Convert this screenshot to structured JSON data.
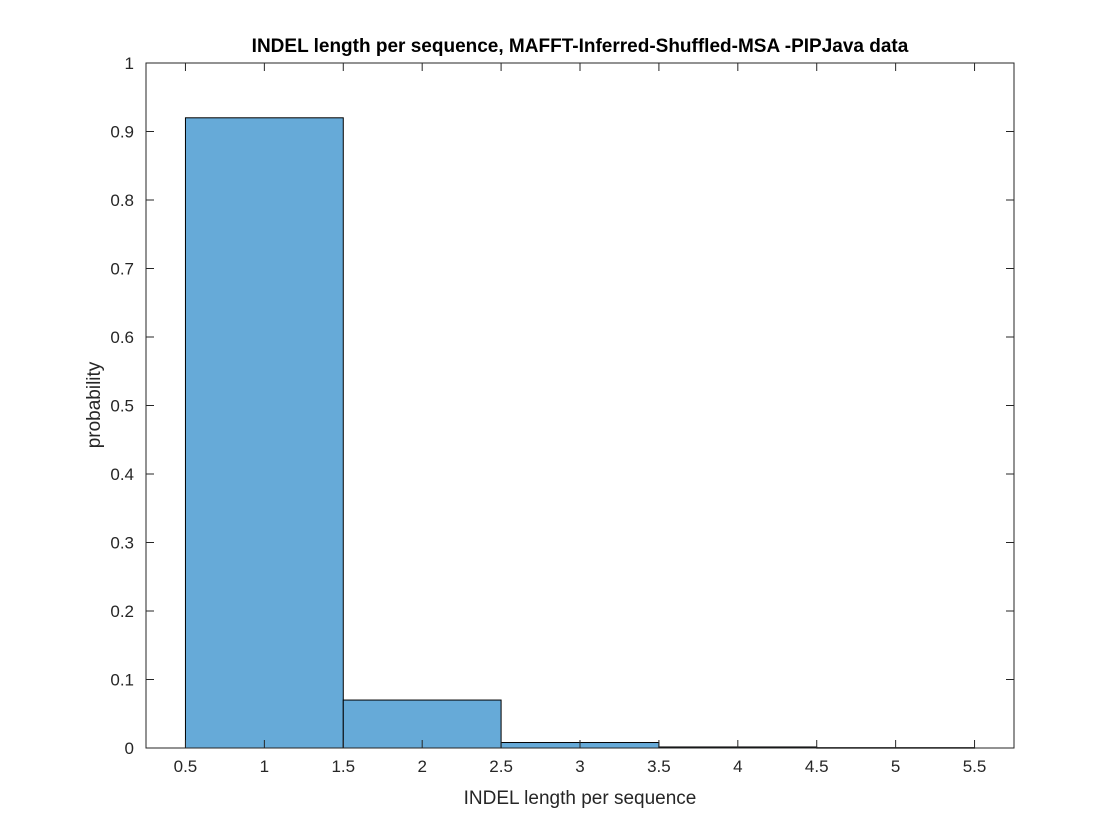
{
  "chart_data": {
    "type": "bar",
    "title": "INDEL length per sequence, MAFFT-Inferred-Shuffled-MSA -PIPJava data",
    "xlabel": "INDEL length per sequence",
    "ylabel": "probability",
    "xlim": [
      0.25,
      5.75
    ],
    "ylim": [
      0,
      1
    ],
    "xticks": [
      "0.5",
      "1",
      "1.5",
      "2",
      "2.5",
      "3",
      "3.5",
      "4",
      "4.5",
      "5",
      "5.5"
    ],
    "yticks": [
      "0",
      "0.1",
      "0.2",
      "0.3",
      "0.4",
      "0.5",
      "0.6",
      "0.7",
      "0.8",
      "0.9",
      "1"
    ],
    "bin_edges": [
      0.5,
      1.5,
      2.5,
      3.5,
      4.5,
      5.5
    ],
    "values": [
      0.92,
      0.07,
      0.008,
      0.0015,
      0.0005
    ],
    "grid": false,
    "bar_color": "#66aad8",
    "edge_color": "#000000"
  }
}
